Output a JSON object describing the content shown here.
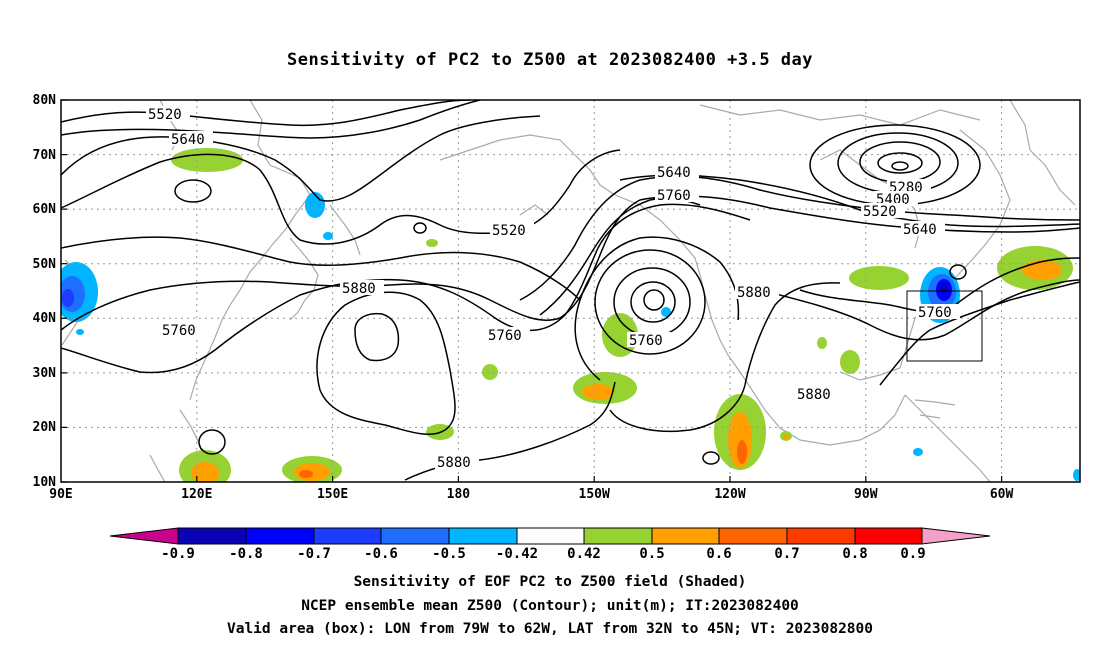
{
  "title": "Sensitivity of PC2 to Z500 at 2023082400 +3.5 day",
  "latitude_labels": [
    "80N",
    "70N",
    "60N",
    "50N",
    "40N",
    "30N",
    "20N",
    "10N"
  ],
  "longitude_labels": [
    "90E",
    "120E",
    "150E",
    "180",
    "150W",
    "120W",
    "90W",
    "60W"
  ],
  "contour_labels": {
    "c5520_a": "5520",
    "c5640_a": "5640",
    "c5760_a": "5760",
    "c5880_a": "5880",
    "c5880_b": "5880",
    "c5520_b": "5520",
    "c5640_b": "5640",
    "c5760_b": "5760",
    "c5760_c": "5760",
    "c5760_d": "5760",
    "c5880_c": "5880",
    "c5880_d": "5880",
    "c5280": "5280",
    "c5400": "5400",
    "c5520_c": "5520",
    "c5640_c": "5640",
    "c5760_e": "5760"
  },
  "colorbar": {
    "labels": [
      "-0.9",
      "-0.8",
      "-0.7",
      "-0.6",
      "-0.5",
      "-0.42",
      "0.42",
      "0.5",
      "0.6",
      "0.7",
      "0.8",
      "0.9"
    ],
    "colors": [
      "#c8008c",
      "#0a00b4",
      "#0000ff",
      "#1e3cff",
      "#1e6eff",
      "#00b4ff",
      "#ffffff",
      "#96d232",
      "#ffa000",
      "#ff6400",
      "#ff3c00",
      "#ff0000",
      "#f5a0c8"
    ]
  },
  "captions": {
    "line1": "Sensitivity of EOF PC2 to Z500 field (Shaded)",
    "line2": "NCEP ensemble mean Z500 (Contour); unit(m); IT:2023082400",
    "line3": "Valid area (box): LON from 79W to 62W, LAT from 32N to 45N; VT: 2023082800"
  },
  "colors": {
    "contour": "#000000",
    "coastline": "#aaaaaa",
    "grid": "#999999"
  }
}
